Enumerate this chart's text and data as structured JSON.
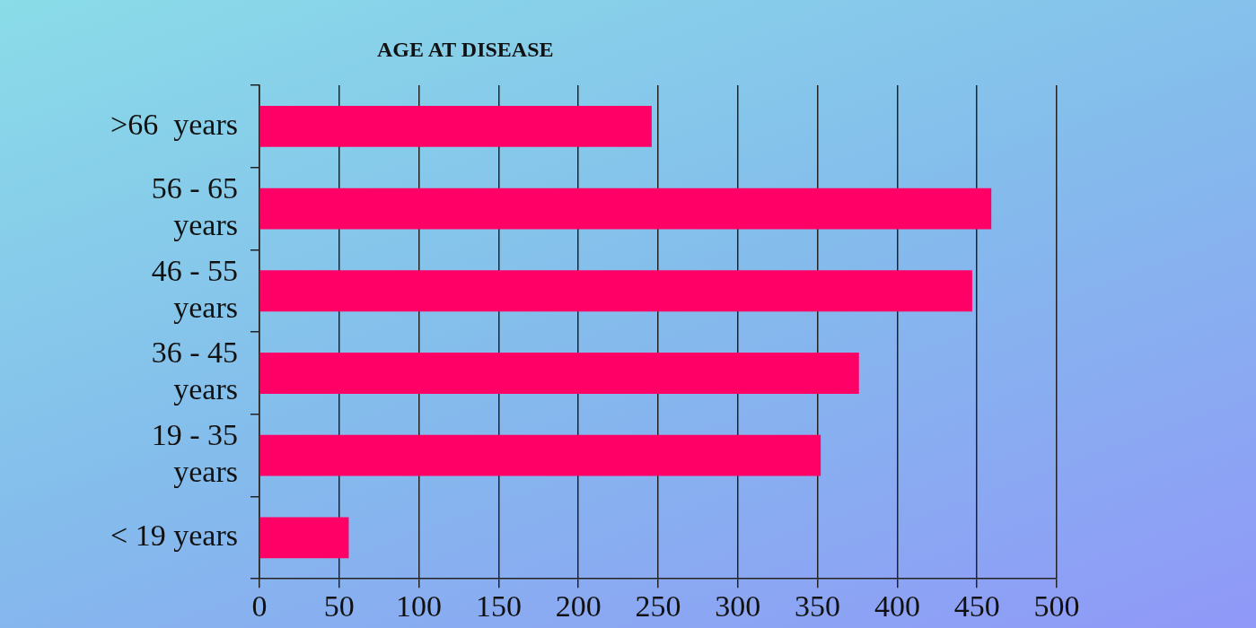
{
  "chart_data": {
    "type": "bar",
    "orientation": "horizontal",
    "title": "AGE AT DISEASE",
    "categories": [
      ">66  years",
      "56 - 65 years",
      "46 - 55 years",
      "36 - 45 years",
      "19 - 35 years",
      "< 19 years"
    ],
    "values": [
      246,
      459,
      447,
      376,
      352,
      56
    ],
    "color": "#ff0066",
    "xlim": [
      0,
      500
    ],
    "xticks": [
      0,
      50,
      100,
      150,
      200,
      250,
      300,
      350,
      400,
      450,
      500
    ],
    "grid": "x",
    "legend": false
  }
}
